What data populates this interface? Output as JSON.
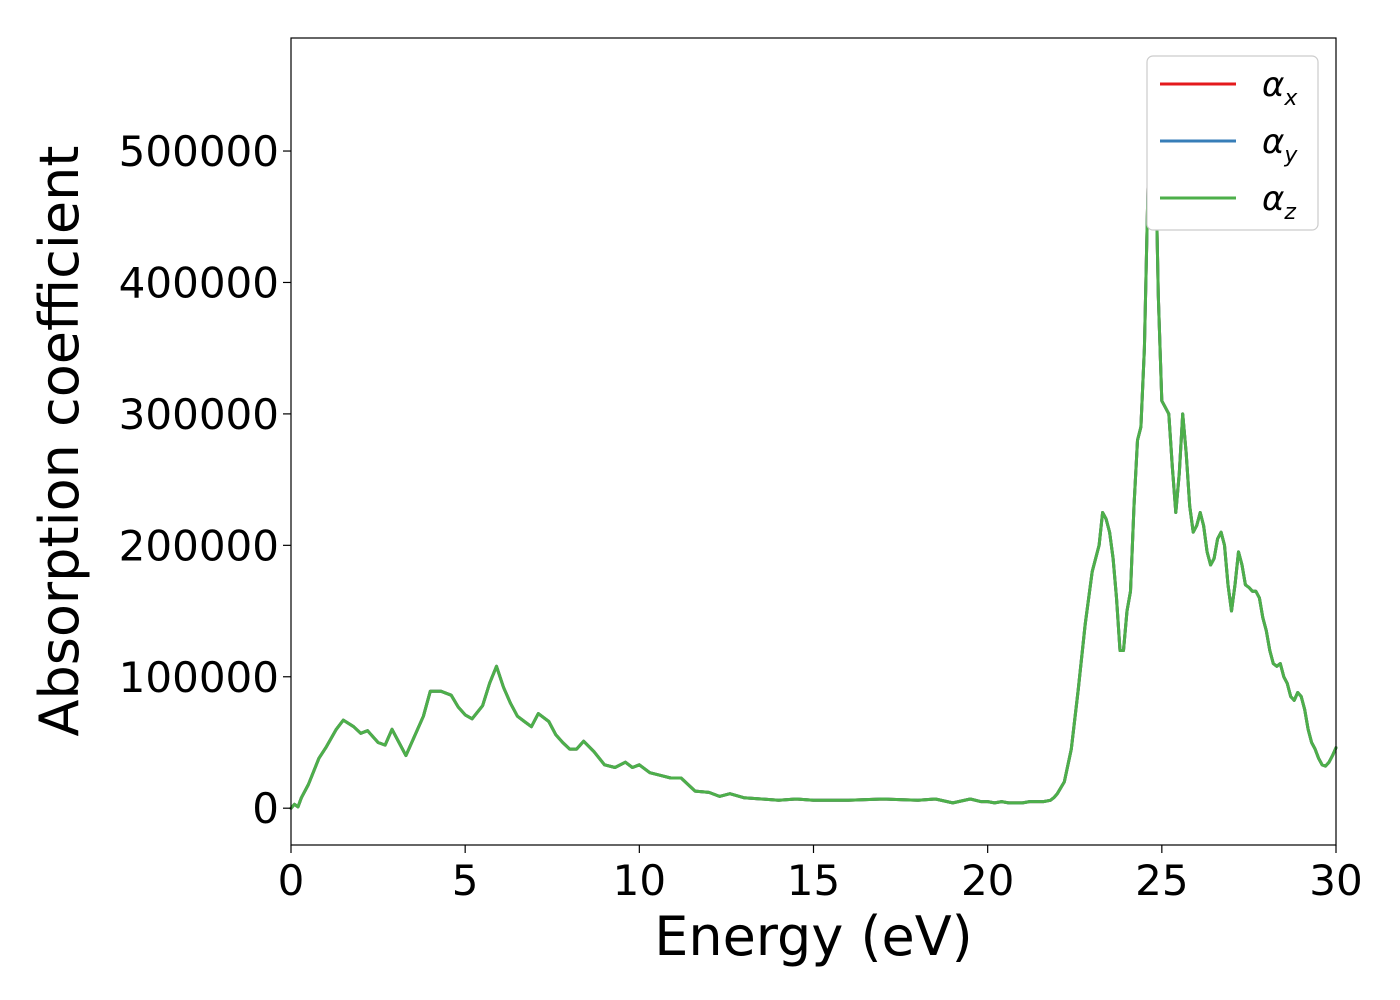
{
  "chart_data": {
    "type": "line",
    "xlabel": "Energy (eV)",
    "ylabel": "Absorption coefficient",
    "xlim": [
      0,
      30
    ],
    "ylim": [
      -28000,
      586000
    ],
    "xticks": [
      0,
      5,
      10,
      15,
      20,
      25,
      30
    ],
    "xtick_labels": [
      "0",
      "5",
      "10",
      "15",
      "20",
      "25",
      "30"
    ],
    "yticks": [
      0,
      100000,
      200000,
      300000,
      400000,
      500000
    ],
    "ytick_labels": [
      "0",
      "100000",
      "200000",
      "300000",
      "400000",
      "500000"
    ],
    "grid": false,
    "legend_position": "top-right",
    "x": [
      0,
      0.1,
      0.2,
      0.3,
      0.5,
      0.8,
      1.0,
      1.3,
      1.5,
      1.8,
      2.0,
      2.2,
      2.5,
      2.7,
      2.9,
      3.1,
      3.3,
      3.5,
      3.8,
      4.0,
      4.3,
      4.6,
      4.8,
      5.0,
      5.2,
      5.5,
      5.7,
      5.9,
      6.1,
      6.3,
      6.5,
      6.7,
      6.9,
      7.1,
      7.4,
      7.6,
      7.8,
      8.0,
      8.2,
      8.4,
      8.7,
      9.0,
      9.3,
      9.6,
      9.8,
      10.0,
      10.3,
      10.6,
      10.9,
      11.2,
      11.6,
      12.0,
      12.3,
      12.6,
      13.0,
      13.5,
      14.0,
      14.5,
      15.0,
      16.0,
      17.0,
      18.0,
      18.5,
      19.0,
      19.5,
      19.8,
      20.0,
      20.2,
      20.4,
      20.6,
      20.8,
      21.0,
      21.2,
      21.4,
      21.6,
      21.8,
      21.9,
      22.0,
      22.2,
      22.4,
      22.6,
      22.8,
      23.0,
      23.2,
      23.3,
      23.4,
      23.5,
      23.6,
      23.7,
      23.8,
      23.9,
      24.0,
      24.1,
      24.2,
      24.3,
      24.4,
      24.5,
      24.6,
      24.7,
      24.8,
      24.9,
      25.0,
      25.1,
      25.2,
      25.3,
      25.4,
      25.5,
      25.6,
      25.7,
      25.8,
      25.9,
      26.0,
      26.1,
      26.2,
      26.3,
      26.4,
      26.5,
      26.6,
      26.7,
      26.8,
      26.9,
      27.0,
      27.1,
      27.2,
      27.3,
      27.4,
      27.5,
      27.6,
      27.7,
      27.8,
      27.9,
      28.0,
      28.1,
      28.2,
      28.3,
      28.4,
      28.5,
      28.6,
      28.7,
      28.8,
      28.9,
      29.0,
      29.1,
      29.2,
      29.3,
      29.4,
      29.5,
      29.6,
      29.7,
      29.8,
      29.9,
      30.0
    ],
    "series": [
      {
        "name": "αx",
        "color": "#e41a1c",
        "y": [
          0,
          3000,
          1000,
          8000,
          18000,
          38000,
          46000,
          60000,
          67000,
          62000,
          57000,
          59000,
          50000,
          48000,
          60000,
          50000,
          40000,
          52000,
          70000,
          89000,
          89000,
          86000,
          77000,
          71000,
          68000,
          78000,
          95000,
          108000,
          92000,
          80000,
          70000,
          66000,
          62000,
          72000,
          66000,
          56000,
          50000,
          45000,
          45000,
          51000,
          43000,
          33000,
          31000,
          35000,
          31000,
          33000,
          27000,
          25000,
          23000,
          23000,
          13000,
          12000,
          9000,
          11000,
          8000,
          7000,
          6000,
          7000,
          6000,
          6000,
          7000,
          6000,
          7000,
          4000,
          7000,
          5000,
          5000,
          4000,
          5000,
          4000,
          4000,
          4000,
          5000,
          5000,
          5000,
          6000,
          8000,
          11000,
          20000,
          45000,
          90000,
          140000,
          180000,
          200000,
          225000,
          220000,
          210000,
          190000,
          160000,
          120000,
          120000,
          150000,
          165000,
          230000,
          280000,
          290000,
          350000,
          470000,
          555000,
          520000,
          390000,
          310000,
          305000,
          300000,
          260000,
          225000,
          255000,
          300000,
          270000,
          230000,
          210000,
          215000,
          225000,
          215000,
          195000,
          185000,
          190000,
          205000,
          210000,
          200000,
          170000,
          150000,
          170000,
          195000,
          185000,
          170000,
          168000,
          165000,
          165000,
          160000,
          145000,
          135000,
          120000,
          110000,
          108000,
          110000,
          100000,
          95000,
          85000,
          82000,
          88000,
          85000,
          75000,
          60000,
          50000,
          45000,
          38000,
          33000,
          32000,
          35000,
          40000,
          46000
        ]
      },
      {
        "name": "αy",
        "color": "#377eb8",
        "y": [
          0,
          3000,
          1000,
          8000,
          18000,
          38000,
          46000,
          60000,
          67000,
          62000,
          57000,
          59000,
          50000,
          48000,
          60000,
          50000,
          40000,
          52000,
          70000,
          89000,
          89000,
          86000,
          77000,
          71000,
          68000,
          78000,
          95000,
          108000,
          92000,
          80000,
          70000,
          66000,
          62000,
          72000,
          66000,
          56000,
          50000,
          45000,
          45000,
          51000,
          43000,
          33000,
          31000,
          35000,
          31000,
          33000,
          27000,
          25000,
          23000,
          23000,
          13000,
          12000,
          9000,
          11000,
          8000,
          7000,
          6000,
          7000,
          6000,
          6000,
          7000,
          6000,
          7000,
          4000,
          7000,
          5000,
          5000,
          4000,
          5000,
          4000,
          4000,
          4000,
          5000,
          5000,
          5000,
          6000,
          8000,
          11000,
          20000,
          45000,
          90000,
          140000,
          180000,
          200000,
          225000,
          220000,
          210000,
          190000,
          160000,
          120000,
          120000,
          150000,
          165000,
          230000,
          280000,
          290000,
          350000,
          470000,
          555000,
          520000,
          390000,
          310000,
          305000,
          300000,
          260000,
          225000,
          255000,
          300000,
          270000,
          230000,
          210000,
          215000,
          225000,
          215000,
          195000,
          185000,
          190000,
          205000,
          210000,
          200000,
          170000,
          150000,
          170000,
          195000,
          185000,
          170000,
          168000,
          165000,
          165000,
          160000,
          145000,
          135000,
          120000,
          110000,
          108000,
          110000,
          100000,
          95000,
          85000,
          82000,
          88000,
          85000,
          75000,
          60000,
          50000,
          45000,
          38000,
          33000,
          32000,
          35000,
          40000,
          46000
        ]
      },
      {
        "name": "αz",
        "color": "#4daf4a",
        "y": [
          0,
          3000,
          1000,
          8000,
          18000,
          38000,
          46000,
          60000,
          67000,
          62000,
          57000,
          59000,
          50000,
          48000,
          60000,
          50000,
          40000,
          52000,
          70000,
          89000,
          89000,
          86000,
          77000,
          71000,
          68000,
          78000,
          95000,
          108000,
          92000,
          80000,
          70000,
          66000,
          62000,
          72000,
          66000,
          56000,
          50000,
          45000,
          45000,
          51000,
          43000,
          33000,
          31000,
          35000,
          31000,
          33000,
          27000,
          25000,
          23000,
          23000,
          13000,
          12000,
          9000,
          11000,
          8000,
          7000,
          6000,
          7000,
          6000,
          6000,
          7000,
          6000,
          7000,
          4000,
          7000,
          5000,
          5000,
          4000,
          5000,
          4000,
          4000,
          4000,
          5000,
          5000,
          5000,
          6000,
          8000,
          11000,
          20000,
          45000,
          90000,
          140000,
          180000,
          200000,
          225000,
          220000,
          210000,
          190000,
          160000,
          120000,
          120000,
          150000,
          165000,
          230000,
          280000,
          290000,
          350000,
          470000,
          555000,
          520000,
          390000,
          310000,
          305000,
          300000,
          260000,
          225000,
          255000,
          300000,
          270000,
          230000,
          210000,
          215000,
          225000,
          215000,
          195000,
          185000,
          190000,
          205000,
          210000,
          200000,
          170000,
          150000,
          170000,
          195000,
          185000,
          170000,
          168000,
          165000,
          165000,
          160000,
          145000,
          135000,
          120000,
          110000,
          108000,
          110000,
          100000,
          95000,
          85000,
          82000,
          88000,
          85000,
          75000,
          60000,
          50000,
          45000,
          38000,
          33000,
          32000,
          35000,
          40000,
          46000
        ]
      }
    ],
    "legend": [
      {
        "symbol": "α",
        "sub": "x",
        "color": "#e41a1c"
      },
      {
        "symbol": "α",
        "sub": "y",
        "color": "#377eb8"
      },
      {
        "symbol": "α",
        "sub": "z",
        "color": "#4daf4a"
      }
    ]
  }
}
